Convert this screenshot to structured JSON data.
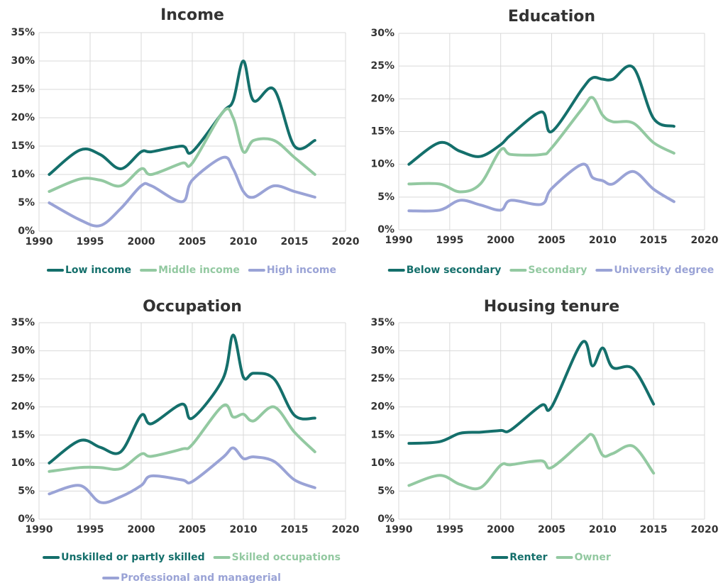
{
  "chart_data": [
    {
      "type": "line",
      "title": "Income",
      "x": [
        1991,
        1994,
        1996,
        1998,
        2000,
        2001,
        2004,
        2005,
        2008,
        2009,
        2010,
        2011,
        2013,
        2015,
        2017
      ],
      "series": [
        {
          "name": "Low income",
          "color": "#146f6b",
          "values": [
            10,
            14.3,
            13.5,
            11,
            14,
            14,
            15,
            14,
            21,
            23,
            30,
            23,
            25,
            15,
            16
          ]
        },
        {
          "name": "Middle income",
          "color": "#93c9a1",
          "values": [
            7,
            9.2,
            9,
            8,
            11,
            10,
            12,
            12,
            21,
            20,
            14,
            16,
            16,
            13,
            10
          ]
        },
        {
          "name": "High income",
          "color": "#9aa3d6",
          "values": [
            5,
            2,
            1,
            4,
            8,
            8,
            5.2,
            9,
            13,
            11,
            7,
            6,
            8,
            7,
            6
          ]
        }
      ],
      "xlim": [
        1990,
        2020
      ],
      "xticks": [
        1990,
        1995,
        2000,
        2005,
        2010,
        2015,
        2020
      ],
      "ylim": [
        0,
        35
      ],
      "yticks": [
        {
          "value": 0,
          "label": "0%"
        },
        {
          "value": 5,
          "label": "5%"
        },
        {
          "value": 10,
          "label": "10%"
        },
        {
          "value": 15,
          "label": "15%"
        },
        {
          "value": 20,
          "label": "20%"
        },
        {
          "value": 25,
          "label": "25%"
        },
        {
          "value": 30,
          "label": "30%"
        },
        {
          "value": 35,
          "label": "35%"
        }
      ],
      "grid": true,
      "legend": "bottom"
    },
    {
      "type": "line",
      "title": "Education",
      "x": [
        1991,
        1994,
        1996,
        1998,
        2000,
        2001,
        2004,
        2005,
        2008,
        2009,
        2010,
        2011,
        2013,
        2015,
        2017
      ],
      "series": [
        {
          "name": "Below secondary",
          "color": "#146f6b",
          "values": [
            10,
            13.3,
            12,
            11.2,
            13,
            14.5,
            18,
            15,
            21.5,
            23.2,
            23,
            23,
            24.8,
            17,
            15.8
          ]
        },
        {
          "name": "Secondary",
          "color": "#93c9a1",
          "values": [
            7,
            7,
            5.8,
            7,
            12.2,
            11.5,
            11.5,
            12.5,
            18.5,
            20.2,
            17.5,
            16.5,
            16.3,
            13.3,
            11.7
          ]
        },
        {
          "name": "University degree",
          "color": "#9aa3d6",
          "values": [
            2.9,
            3,
            4.5,
            3.8,
            3,
            4.5,
            3.9,
            6.3,
            10,
            8,
            7.5,
            7,
            8.9,
            6.2,
            4.3
          ]
        }
      ],
      "xlim": [
        1990,
        2020
      ],
      "xticks": [
        1990,
        1995,
        2000,
        2005,
        2010,
        2015,
        2020
      ],
      "ylim": [
        0,
        30
      ],
      "yticks": [
        {
          "value": 0,
          "label": "0%"
        },
        {
          "value": 5,
          "label": "5%"
        },
        {
          "value": 10,
          "label": "10%"
        },
        {
          "value": 15,
          "label": "15%"
        },
        {
          "value": 20,
          "label": "20%"
        },
        {
          "value": 25,
          "label": "25%"
        },
        {
          "value": 30,
          "label": "30%"
        }
      ],
      "grid": true,
      "legend": "bottom"
    },
    {
      "type": "line",
      "title": "Occupation",
      "x": [
        1991,
        1994,
        1996,
        1998,
        2000,
        2001,
        2004,
        2005,
        2008,
        2009,
        2010,
        2011,
        2013,
        2015,
        2017
      ],
      "series": [
        {
          "name": "Unskilled or partly skilled",
          "color": "#146f6b",
          "values": [
            10,
            14,
            12.8,
            12,
            18.5,
            17,
            20.5,
            18,
            25,
            32.8,
            25.3,
            26,
            25,
            18.5,
            18
          ]
        },
        {
          "name": "Skilled occupations",
          "color": "#93c9a1",
          "values": [
            8.5,
            9.2,
            9.2,
            9,
            11.6,
            11.2,
            12.5,
            13.3,
            20.2,
            18.2,
            18.7,
            17.5,
            20,
            15.5,
            12
          ]
        },
        {
          "name": "Professional and managerial",
          "color": "#9aa3d6",
          "values": [
            4.5,
            6,
            3,
            4,
            6,
            7.7,
            7,
            6.7,
            11,
            12.7,
            10.8,
            11.1,
            10.3,
            7,
            5.6
          ]
        }
      ],
      "xlim": [
        1990,
        2020
      ],
      "xticks": [
        1990,
        1995,
        2000,
        2005,
        2010,
        2015,
        2020
      ],
      "ylim": [
        0,
        35
      ],
      "yticks": [
        {
          "value": 0,
          "label": "0%"
        },
        {
          "value": 5,
          "label": "5%"
        },
        {
          "value": 10,
          "label": "10%"
        },
        {
          "value": 15,
          "label": "15%"
        },
        {
          "value": 20,
          "label": "20%"
        },
        {
          "value": 25,
          "label": "25%"
        },
        {
          "value": 30,
          "label": "30%"
        },
        {
          "value": 35,
          "label": "35%"
        }
      ],
      "grid": true,
      "legend": "bottom"
    },
    {
      "type": "line",
      "title": "Housing tenure",
      "x": [
        1991,
        1994,
        1996,
        1998,
        2000,
        2001,
        2004,
        2005,
        2008,
        2009,
        2010,
        2011,
        2013,
        2015
      ],
      "series": [
        {
          "name": "Renter",
          "color": "#146f6b",
          "values": [
            13.5,
            13.8,
            15.3,
            15.5,
            15.8,
            15.9,
            20.3,
            20,
            31.5,
            27.3,
            30.5,
            27,
            26.8,
            20.5
          ]
        },
        {
          "name": "Owner",
          "color": "#93c9a1",
          "values": [
            6,
            7.8,
            6.2,
            5.6,
            9.6,
            9.7,
            10.4,
            9.2,
            13.8,
            15,
            11.4,
            11.7,
            13,
            8.2
          ]
        }
      ],
      "xlim": [
        1990,
        2020
      ],
      "xticks": [
        1990,
        1995,
        2000,
        2005,
        2010,
        2015,
        2020
      ],
      "ylim": [
        0,
        35
      ],
      "yticks": [
        {
          "value": 0,
          "label": "0%"
        },
        {
          "value": 5,
          "label": "5%"
        },
        {
          "value": 10,
          "label": "10%"
        },
        {
          "value": 15,
          "label": "15%"
        },
        {
          "value": 20,
          "label": "20%"
        },
        {
          "value": 25,
          "label": "25%"
        },
        {
          "value": 30,
          "label": "30%"
        },
        {
          "value": 35,
          "label": "35%"
        }
      ],
      "grid": true,
      "legend": "bottom"
    }
  ]
}
